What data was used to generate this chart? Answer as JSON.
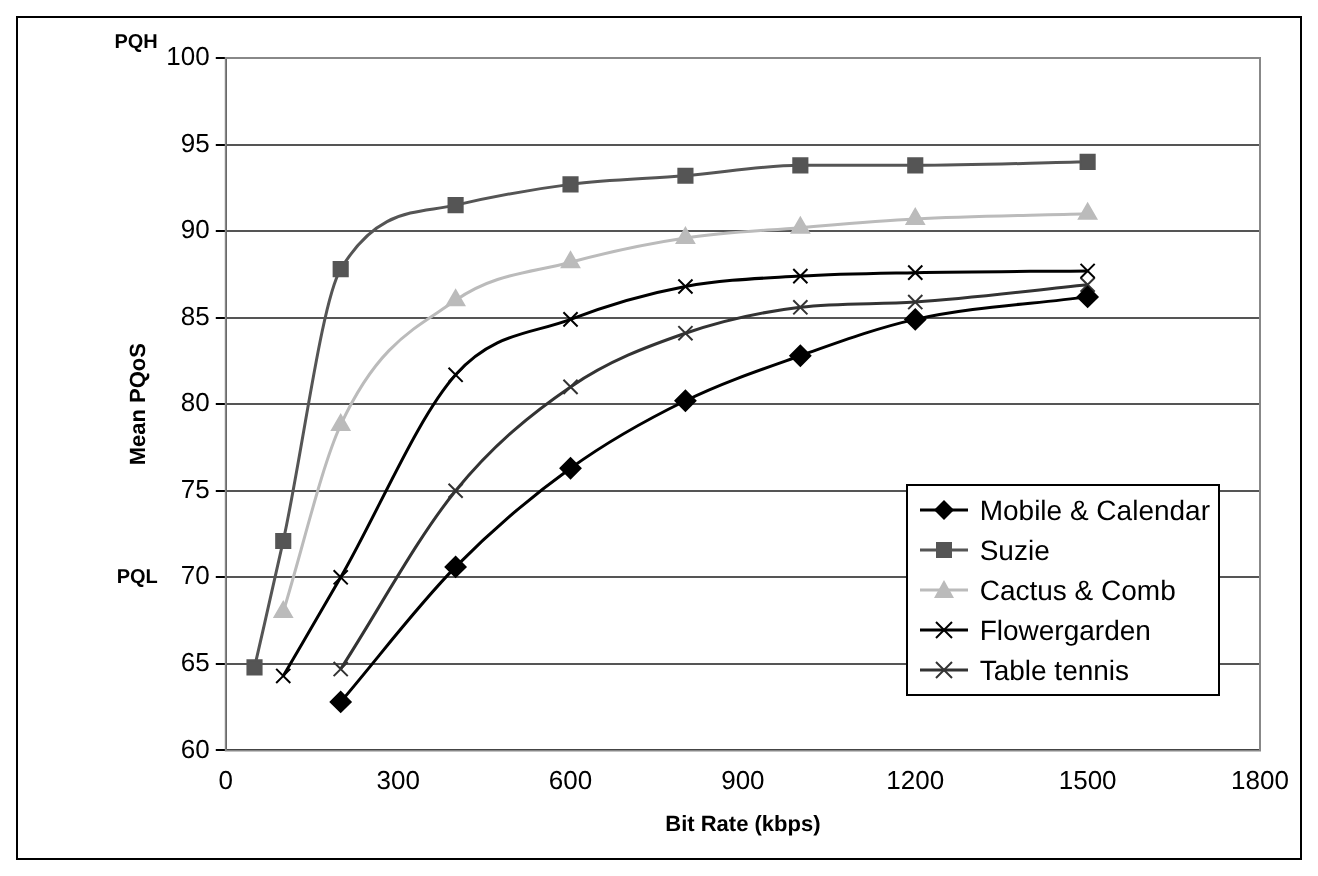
{
  "chart_data": {
    "type": "line",
    "xlabel": "Bit Rate (kbps)",
    "ylabel": "Mean PQoS",
    "xlim": [
      0,
      1800
    ],
    "xticks": [
      0,
      300,
      600,
      900,
      1200,
      1500,
      1800
    ],
    "ylim": [
      60,
      100
    ],
    "yticks": [
      60,
      65,
      70,
      75,
      80,
      85,
      90,
      95,
      100
    ],
    "grid": "y",
    "legend": "bottom right",
    "annotations": [
      "PQH",
      "PQL"
    ],
    "series": [
      {
        "name": "Mobile & Calendar",
        "color": "#000000",
        "marker": "diamond",
        "x": [
          200,
          400,
          600,
          800,
          1000,
          1200,
          1500
        ],
        "values": [
          62.8,
          70.6,
          76.3,
          80.2,
          82.8,
          84.9,
          86.2
        ]
      },
      {
        "name": "Suzie",
        "color": "#555555",
        "marker": "square",
        "x": [
          50,
          100,
          200,
          400,
          600,
          800,
          1000,
          1200,
          1500
        ],
        "values": [
          64.8,
          72.1,
          87.8,
          91.5,
          92.7,
          93.2,
          93.8,
          93.8,
          94.0
        ]
      },
      {
        "name": "Cactus & Comb",
        "color": "#bbbbbb",
        "marker": "triangle",
        "x": [
          100,
          200,
          400,
          600,
          800,
          1000,
          1200,
          1500
        ],
        "values": [
          68.0,
          78.8,
          86.0,
          88.2,
          89.6,
          90.2,
          90.7,
          91.0
        ]
      },
      {
        "name": "Flowergarden",
        "color": "#000000",
        "marker": "cross",
        "x": [
          100,
          200,
          400,
          600,
          800,
          1000,
          1200,
          1500
        ],
        "values": [
          64.3,
          70.0,
          81.7,
          84.9,
          86.8,
          87.4,
          87.6,
          87.7
        ]
      },
      {
        "name": "Table tennis",
        "color": "#333333",
        "marker": "cross",
        "x": [
          200,
          400,
          600,
          800,
          1000,
          1200,
          1500
        ],
        "values": [
          64.7,
          75.0,
          81.0,
          84.1,
          85.6,
          85.9,
          86.9
        ]
      }
    ]
  }
}
